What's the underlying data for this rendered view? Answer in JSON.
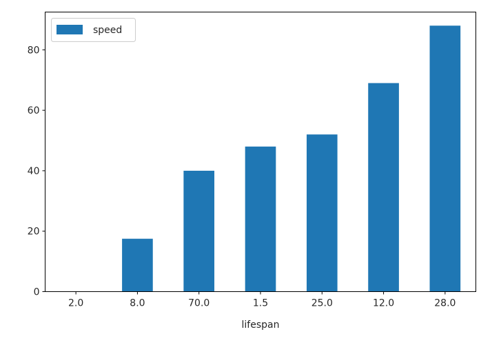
{
  "chart_data": {
    "type": "bar",
    "title": "",
    "xlabel": "lifespan",
    "ylabel": "",
    "categories": [
      "2.0",
      "8.0",
      "70.0",
      "1.5",
      "25.0",
      "12.0",
      "28.0"
    ],
    "series": [
      {
        "name": "speed",
        "values": [
          0.1,
          17.5,
          40,
          48,
          52,
          69,
          88
        ],
        "color": "#1f77b4"
      }
    ],
    "ylim": [
      0,
      92.5
    ],
    "yticks": [
      0,
      20,
      40,
      60,
      80
    ],
    "grid": false,
    "legend": "top-left"
  }
}
